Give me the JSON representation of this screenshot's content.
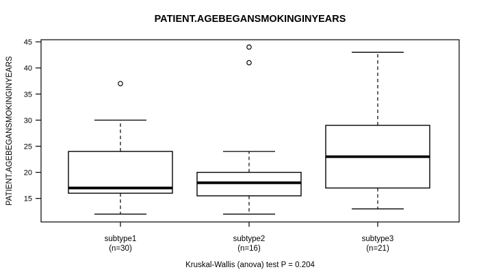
{
  "chart_data": {
    "type": "boxplot",
    "title": "PATIENT.AGEBEGANSMOKINGINYEARS",
    "ylabel": "PATIENT.AGEBEGANSMOKINGINYEARS",
    "xlabel": "",
    "caption": "Kruskal-Wallis (anova) test P = 0.204",
    "ylim": [
      10.5,
      45.4
    ],
    "yticks": [
      15,
      20,
      25,
      30,
      35,
      40,
      45
    ],
    "grid": false,
    "legend": "none",
    "categories": [
      "subtype1",
      "subtype2",
      "subtype3"
    ],
    "category_counts": [
      "(n=30)",
      "(n=16)",
      "(n=21)"
    ],
    "series": [
      {
        "name": "subtype1",
        "n": 30,
        "whisker_low": 12,
        "q1": 16,
        "median": 17,
        "q3": 24,
        "whisker_high": 30,
        "outliers": [
          37
        ]
      },
      {
        "name": "subtype2",
        "n": 16,
        "whisker_low": 12,
        "q1": 15.5,
        "median": 18,
        "q3": 20,
        "whisker_high": 24,
        "outliers": [
          41,
          44
        ]
      },
      {
        "name": "subtype3",
        "n": 21,
        "whisker_low": 13,
        "q1": 17,
        "median": 23,
        "q3": 29,
        "whisker_high": 43,
        "outliers": []
      }
    ],
    "colors": {
      "line": "#000000",
      "box_fill": "#ffffff",
      "background": "#ffffff"
    }
  }
}
